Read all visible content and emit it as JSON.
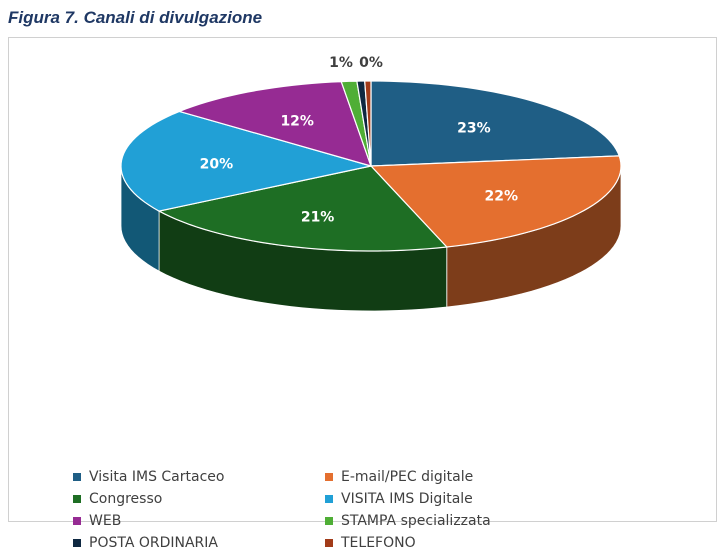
{
  "figure": {
    "title": "Figura 7. Canali di divulgazione"
  },
  "chart_data": {
    "type": "pie",
    "title": "",
    "categories": [
      "Visita IMS Cartaceo",
      "E-mail/PEC digitale",
      "Congresso",
      "VISITA IMS Digitale",
      "WEB",
      "STAMPA specializzata",
      "POSTA ORDINARIA",
      "TELEFONO"
    ],
    "slices_clockwise_from_top": [
      {
        "name": "Visita IMS Cartaceo",
        "value": 23.1,
        "label": "23%",
        "color": "#1f5e85"
      },
      {
        "name": "E-mail/PEC digitale",
        "value": 22.0,
        "label": "22%",
        "color": "#e46f2f"
      },
      {
        "name": "Congresso",
        "value": 21.0,
        "label": "21%",
        "color": "#1e6e24"
      },
      {
        "name": "VISITA IMS Digitale",
        "value": 20.0,
        "label": "20%",
        "color": "#21a0d6"
      },
      {
        "name": "WEB",
        "value": 12.0,
        "label": "12%",
        "color": "#962b93"
      },
      {
        "name": "STAMPA specializzata",
        "value": 1.0,
        "label": "1%",
        "color": "#4fae36"
      },
      {
        "name": "POSTA ORDINARIA",
        "value": 0.5,
        "label": "",
        "color": "#0e2841"
      },
      {
        "name": "TELEFONO",
        "value": 0.4,
        "label": "0%",
        "color": "#a23b19"
      }
    ],
    "legend": [
      {
        "name": "Visita IMS Cartaceo",
        "color": "#1f5e85"
      },
      {
        "name": "E-mail/PEC digitale",
        "color": "#e46f2f"
      },
      {
        "name": "Congresso",
        "color": "#1e6e24"
      },
      {
        "name": "VISITA IMS Digitale",
        "color": "#21a0d6"
      },
      {
        "name": "WEB",
        "color": "#962b93"
      },
      {
        "name": "STAMPA specializzata",
        "color": "#4fae36"
      },
      {
        "name": "POSTA ORDINARIA",
        "color": "#0e2841"
      },
      {
        "name": "TELEFONO",
        "color": "#a23b19"
      }
    ],
    "legend_position": "bottom"
  }
}
